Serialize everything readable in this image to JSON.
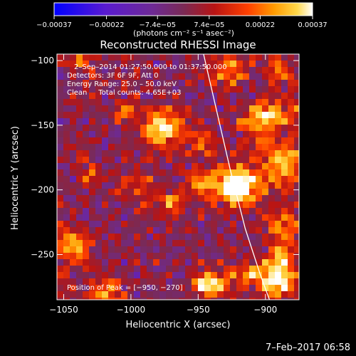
{
  "chart_data": {
    "type": "heatmap",
    "title": "Reconstructed RHESSI Image",
    "xlabel": "Heliocentric X (arcsec)",
    "ylabel": "Heliocentric Y (arcsec)",
    "xlim": [
      -1055,
      -875
    ],
    "ylim": [
      -285,
      -95
    ],
    "x_ticks": [
      -1050,
      -1000,
      -950,
      -900
    ],
    "y_ticks": [
      -100,
      -150,
      -200,
      -250
    ],
    "x_tick_labels": [
      "−1050",
      "−1000",
      "−950",
      "−900"
    ],
    "y_tick_labels": [
      "−100",
      "−150",
      "−200",
      "−250"
    ],
    "colorbar": {
      "range": [
        -0.00037,
        0.00037
      ],
      "tick_values": [
        -0.00037,
        -0.00022,
        -7.4e-05,
        7.4e-05,
        0.00022,
        0.00037
      ],
      "tick_labels": [
        "−0.00037",
        "−0.00022",
        "−7.4e−05",
        "7.4e−05",
        "0.00022",
        "0.00037"
      ],
      "unit_label": "(photons cm⁻² s⁻¹ asec⁻²)"
    },
    "annotations": {
      "line1": "2–Sep–2014 01:27:50.000 to 01:37:50.000",
      "line2": "Detectors: 3F 6F 9F, Att 0",
      "line3": "Energy Range: 25.0 – 50.0 keV",
      "line4": "Clean     Total counts: 4.65E+03",
      "peak": "Position of Peak = [−950, −270]"
    },
    "peak_position": [
      -950,
      -270
    ],
    "limb_curve": [
      [
        -946,
        -95
      ],
      [
        -936,
        -140
      ],
      [
        -926,
        -185
      ],
      [
        -915,
        -230
      ],
      [
        -904,
        -265
      ],
      [
        -897,
        -285
      ]
    ],
    "grid": false
  },
  "footer": {
    "timestamp": "7–Feb–2017 06:58"
  },
  "colors": {
    "background": "#000000",
    "text": "#ffffff",
    "colormap": [
      "#0000ff",
      "#5a1bd0",
      "#6e2a95",
      "#7a2a55",
      "#b81414",
      "#ff4000",
      "#ff9a00",
      "#ffd84a",
      "#ffffff"
    ]
  }
}
